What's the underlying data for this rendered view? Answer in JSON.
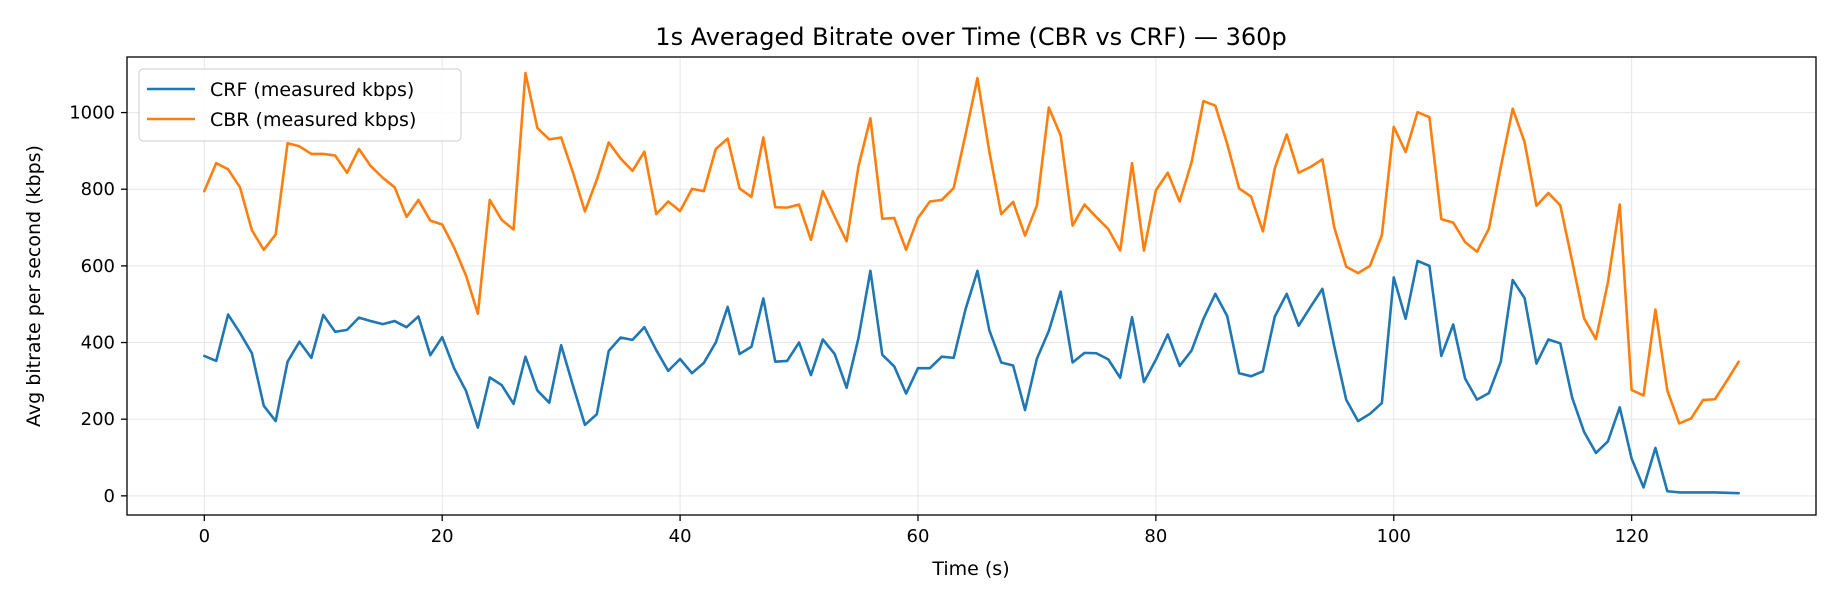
{
  "chart_data": {
    "type": "line",
    "title": "1s Averaged Bitrate over Time (CBR vs CRF) — 360p",
    "xlabel": "Time (s)",
    "ylabel": "Avg bitrate per second (kbps)",
    "xlim": [
      -6.5,
      135.5
    ],
    "ylim": [
      -50,
      1145
    ],
    "xticks": [
      0,
      20,
      40,
      60,
      80,
      100,
      120
    ],
    "yticks": [
      0,
      200,
      400,
      600,
      800,
      1000
    ],
    "grid": true,
    "legend_position": "top-left",
    "series": [
      {
        "name": "CRF (measured kbps)",
        "color": "#1f77b4",
        "values": [
          365,
          352,
          473,
          425,
          372,
          235,
          195,
          350,
          402,
          360,
          472,
          428,
          433,
          465,
          456,
          448,
          456,
          440,
          468,
          367,
          414,
          333,
          274,
          178,
          309,
          289,
          240,
          363,
          275,
          243,
          393,
          287,
          185,
          213,
          378,
          413,
          407,
          440,
          380,
          326,
          357,
          320,
          347,
          400,
          493,
          370,
          389,
          515,
          350,
          352,
          400,
          315,
          408,
          370,
          282,
          412,
          587,
          368,
          338,
          267,
          333,
          333,
          363,
          360,
          487,
          587,
          432,
          348,
          340,
          224,
          358,
          430,
          533,
          348,
          373,
          372,
          356,
          308,
          466,
          297,
          355,
          421,
          339,
          379,
          462,
          527,
          469,
          320,
          312,
          325,
          468,
          527,
          444,
          493,
          540,
          390,
          251,
          195,
          214,
          242,
          570,
          462,
          613,
          600,
          365,
          447,
          306,
          251,
          268,
          350,
          563,
          516,
          345,
          408,
          398,
          256,
          167,
          112,
          142,
          231,
          97,
          22,
          125,
          12,
          9,
          9,
          9,
          9,
          8,
          7
        ]
      },
      {
        "name": "CBR (measured kbps)",
        "color": "#ff7f0e",
        "values": [
          795,
          868,
          852,
          805,
          693,
          642,
          682,
          920,
          912,
          892,
          892,
          888,
          843,
          905,
          860,
          830,
          805,
          728,
          772,
          718,
          708,
          648,
          575,
          475,
          772,
          720,
          695,
          1103,
          960,
          930,
          935,
          843,
          742,
          825,
          922,
          880,
          848,
          898,
          735,
          768,
          743,
          801,
          795,
          905,
          932,
          802,
          780,
          935,
          753,
          752,
          760,
          668,
          795,
          728,
          664,
          860,
          985,
          723,
          725,
          642,
          725,
          768,
          772,
          803,
          943,
          1090,
          898,
          735,
          767,
          679,
          758,
          1013,
          940,
          705,
          760,
          727,
          696,
          640,
          868,
          640,
          797,
          843,
          768,
          870,
          1030,
          1018,
          918,
          802,
          781,
          690,
          855,
          943,
          843,
          858,
          878,
          700,
          598,
          581,
          600,
          680,
          963,
          897,
          1001,
          988,
          722,
          713,
          662,
          637,
          697,
          858,
          1010,
          923,
          757,
          790,
          758,
          612,
          463,
          409,
          556,
          760,
          276,
          262,
          486,
          275,
          189,
          202,
          250,
          252,
          300,
          350
        ]
      }
    ]
  }
}
